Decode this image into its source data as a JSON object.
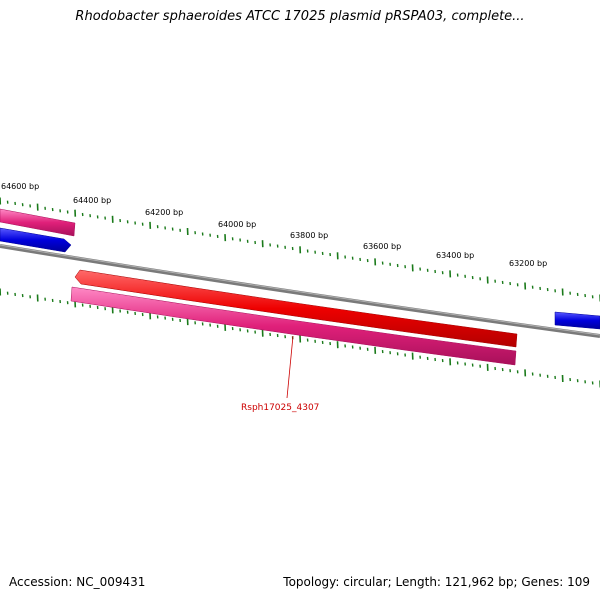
{
  "header": {
    "title": "Rhodobacter sphaeroides ATCC 17025 plasmid pRSPA03, complete..."
  },
  "footer": {
    "accession": "Accession: NC_009431",
    "summary": "Topology: circular; Length: 121,962 bp; Genes: 109"
  },
  "map": {
    "tick_labels": [
      "64600 bp",
      "64400 bp",
      "64200 bp",
      "64000 bp",
      "63800 bp",
      "63600 bp",
      "63400 bp",
      "63200 bp"
    ],
    "highlighted_gene": "Rsph17025_4307",
    "colors": {
      "backbone": "#888888",
      "tick": "#1a7a1a",
      "cds": "#ee0000",
      "gene": "#e0207a",
      "other_feature": "#0000dd",
      "label": "#cc0000"
    }
  }
}
